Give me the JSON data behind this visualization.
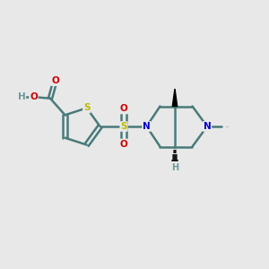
{
  "bg_color": "#e8e8e8",
  "bond_color": "#4a7a7a",
  "bond_width": 1.8,
  "S_color": "#bbbb00",
  "N_color": "#0000cc",
  "O_color": "#cc0000",
  "H_color": "#6a9a9a",
  "fig_width": 3.0,
  "fig_height": 3.0,
  "dpi": 100,
  "xlim": [
    0,
    10
  ],
  "ylim": [
    0,
    10
  ]
}
